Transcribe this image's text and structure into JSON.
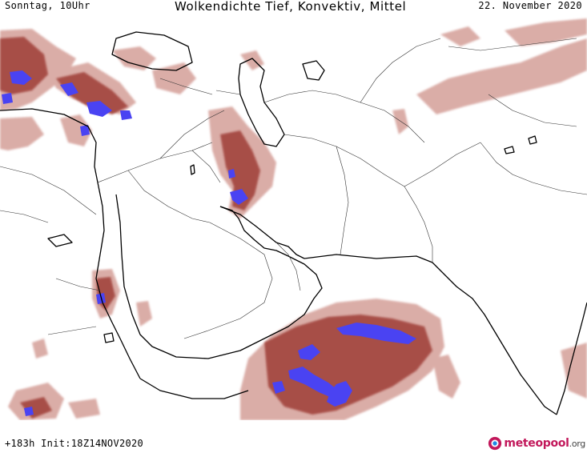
{
  "header": {
    "day_time": "Sonntag, 10Uhr",
    "title": "Wolkendichte   Tief, Konvektiv, Mittel",
    "date": "22. November 2020"
  },
  "footer": {
    "run_info": "+183h  Init:18Z14NOV2020",
    "logo_main": "meteopool",
    "logo_tld": ".org"
  },
  "colors": {
    "cloud_light": "#d9a9a3",
    "cloud_mid": "#b4655e",
    "cloud_dark": "#8e2f28",
    "convective": "#4a43f2",
    "coast": "#000000",
    "border": "#222222",
    "logo": "#c2185b"
  }
}
